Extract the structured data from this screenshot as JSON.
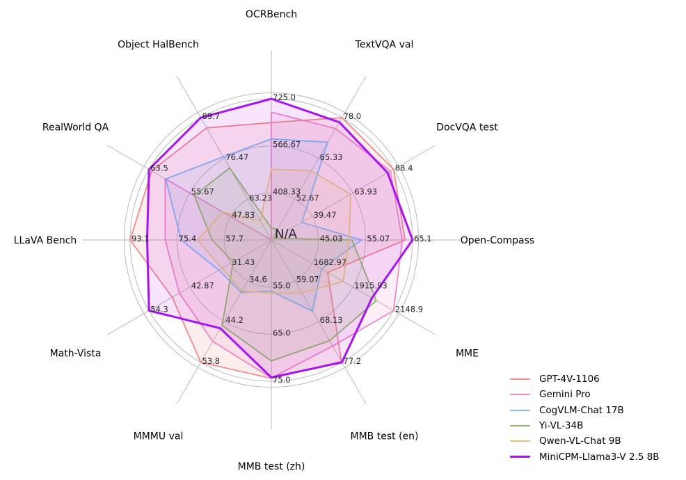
{
  "chart_data": {
    "type": "radar",
    "center_label": "N/A",
    "grid": {
      "rings": [
        0.3333,
        0.6667,
        1.0
      ],
      "outer_boundary": true,
      "spokes": 12,
      "grid_color": "#b3b3b3"
    },
    "legend_position": "bottom-right",
    "axes": [
      {
        "label": "OCRBench",
        "min": 250,
        "max": 725,
        "ticks": [
          "408.33",
          "566.67",
          "725.0"
        ]
      },
      {
        "label": "TextVQA val",
        "min": 40,
        "max": 78,
        "ticks": [
          "52.67",
          "65.33",
          "78.0"
        ]
      },
      {
        "label": "DocVQA test",
        "min": 15,
        "max": 88.4,
        "ticks": [
          "39.47",
          "63.93",
          "88.4"
        ]
      },
      {
        "label": "Open-Compass",
        "min": 35,
        "max": 65.1,
        "ticks": [
          "45.03",
          "55.07",
          "65.1"
        ]
      },
      {
        "label": "MME",
        "min": 1450,
        "max": 2148.9,
        "ticks": [
          "1682.97",
          "1915.93",
          "2148.9"
        ]
      },
      {
        "label": "MMB test (en)",
        "min": 50,
        "max": 77.2,
        "ticks": [
          "59.07",
          "68.13",
          "77.2"
        ]
      },
      {
        "label": "MMB test (zh)",
        "min": 45,
        "max": 75.0,
        "ticks": [
          "55.0",
          "65.0",
          "75.0"
        ]
      },
      {
        "label": "MMMU val",
        "min": 25,
        "max": 53.8,
        "ticks": [
          "34.6",
          "44.2",
          "53.8"
        ]
      },
      {
        "label": "Math-Vista",
        "min": 20,
        "max": 54.3,
        "ticks": [
          "31.43",
          "42.87",
          "54.3"
        ]
      },
      {
        "label": "LLaVA Bench",
        "min": 40,
        "max": 93.1,
        "ticks": [
          "57.7",
          "75.4",
          "93.1"
        ]
      },
      {
        "label": "RealWorld QA",
        "min": 40,
        "max": 63.5,
        "ticks": [
          "47.83",
          "55.67",
          "63.5"
        ]
      },
      {
        "label": "Object HalBench",
        "min": 50,
        "max": 89.7,
        "ticks": [
          "63.23",
          "76.47",
          "89.7"
        ]
      }
    ],
    "series": [
      {
        "name": "GPT-4V-1106",
        "color": "#f48a8a",
        "line_width": 1.8,
        "fill_opacity": 0.14,
        "values": [
          645,
          78.0,
          88.4,
          63.5,
          1771.5,
          77.0,
          74.4,
          53.8,
          47.8,
          93.1,
          63.0,
          86.4
        ]
      },
      {
        "name": "Gemini Pro",
        "color": "#f286c5",
        "line_width": 1.8,
        "fill_opacity": 0.14,
        "values": [
          680,
          74.6,
          86.5,
          62.9,
          2148.9,
          73.6,
          74.3,
          48.9,
          45.8,
          79.9,
          60.4,
          null
        ]
      },
      {
        "name": "CogVLM-Chat 17B",
        "color": "#7db8f2",
        "line_width": 1.8,
        "fill_opacity": 0.13,
        "values": [
          590,
          70.4,
          33.3,
          54.2,
          1736.6,
          65.8,
          55.9,
          37.3,
          34.7,
          73.9,
          60.3,
          77.0
        ]
      },
      {
        "name": "Yi-VL-34B",
        "color": "#8cb764",
        "line_width": 1.8,
        "fill_opacity": 0.13,
        "values": [
          290,
          43.4,
          16.9,
          52.2,
          2050.2,
          72.4,
          70.7,
          45.1,
          30.7,
          62.3,
          54.8,
          73.4
        ]
      },
      {
        "name": "Qwen-VL-Chat 9B",
        "color": "#e6c37e",
        "line_width": 1.8,
        "fill_opacity": 0.13,
        "values": [
          488,
          61.5,
          62.6,
          51.6,
          1860.0,
          61.8,
          56.3,
          37.0,
          33.8,
          67.7,
          49.3,
          56.2
        ]
      },
      {
        "name": "MiniCPM-Llama3-V 2.5 8B",
        "color": "#a912f0",
        "line_width": 3,
        "fill_opacity": 0.11,
        "values": [
          725,
          76.6,
          84.8,
          65.1,
          2024.6,
          77.2,
          74.2,
          45.8,
          54.3,
          86.7,
          63.5,
          89.7
        ]
      }
    ]
  }
}
